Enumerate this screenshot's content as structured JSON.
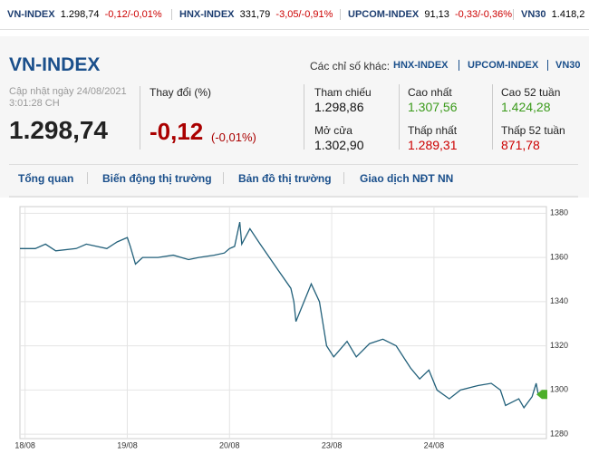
{
  "ticker": [
    {
      "name": "VN-INDEX",
      "price": "1.298,74",
      "change": "-0,12/-0,01%"
    },
    {
      "name": "HNX-INDEX",
      "price": "331,79",
      "change": "-3,05/-0,91%"
    },
    {
      "name": "UPCOM-INDEX",
      "price": "91,13",
      "change": "-0,33/-0,36%"
    },
    {
      "name": "VN30",
      "price": "1.418,2"
    }
  ],
  "header": {
    "title": "VN-INDEX",
    "others_label": "Các chỉ số khác:",
    "others": [
      "HNX-INDEX",
      "UPCOM-INDEX",
      "VN30"
    ],
    "updated": "Cập nhật ngày 24/08/2021",
    "time": "3:01:28 CH",
    "price": "1.298,74",
    "change_label": "Thay đổi (%)",
    "change": "-0,12",
    "change_pct": "(-0,01%)"
  },
  "stats": [
    {
      "label": "Tham chiếu",
      "value": "1.298,86"
    },
    {
      "label": "Mở cửa",
      "value": "1.302,90"
    },
    {
      "label": "Cao nhất",
      "value": "1.307,56"
    },
    {
      "label": "Thấp nhất",
      "value": "1.289,31"
    },
    {
      "label": "Cao 52 tuần",
      "value": "1.424,28"
    },
    {
      "label": "Thấp 52 tuần",
      "value": "871,78"
    }
  ],
  "tabs": [
    "Tổng quan",
    "Biến động thị trường",
    "Bản đồ thị trường",
    "Giao dịch NĐT NN"
  ],
  "chart_data": {
    "type": "line",
    "color": "#22607a",
    "grid": true,
    "x": [
      -0.05,
      0.1,
      0.2,
      0.3,
      0.5,
      0.6,
      0.8,
      0.9,
      1.0,
      1.03,
      1.08,
      1.15,
      1.3,
      1.45,
      1.6,
      1.7,
      1.85,
      1.95,
      2.0,
      2.05,
      2.1,
      2.12,
      2.2,
      2.3,
      2.48,
      2.6,
      2.63,
      2.65,
      2.8,
      2.88,
      2.95,
      3.02,
      3.15,
      3.24,
      3.37,
      3.5,
      3.63,
      3.77,
      3.86,
      3.95,
      4.03,
      4.15,
      4.26,
      4.43,
      4.56,
      4.65,
      4.7,
      4.83,
      4.88,
      4.96,
      5.0,
      5.02
    ],
    "values": [
      1364,
      1364,
      1366,
      1363,
      1364,
      1366,
      1364,
      1367,
      1369,
      1365,
      1357,
      1360,
      1360,
      1361,
      1359,
      1360,
      1361,
      1362,
      1364,
      1365,
      1376,
      1366,
      1373,
      1366,
      1354,
      1346,
      1340,
      1331,
      1348,
      1340,
      1320,
      1315,
      1322,
      1315,
      1321,
      1323,
      1320,
      1310,
      1305,
      1309,
      1300,
      1296,
      1300,
      1302,
      1303,
      1300,
      1293,
      1296,
      1292,
      1297,
      1303,
      1298
    ],
    "xlim": [
      -0.05,
      5.1
    ],
    "xticks": [
      {
        "value": 0,
        "label": "18/08"
      },
      {
        "value": 1,
        "label": "19/08"
      },
      {
        "value": 2,
        "label": "20/08"
      },
      {
        "value": 3,
        "label": "23/08"
      },
      {
        "value": 4,
        "label": "24/08"
      }
    ],
    "ylim": [
      1278,
      1383
    ],
    "yticks": [
      1280,
      1300,
      1320,
      1340,
      1360,
      1380
    ]
  }
}
